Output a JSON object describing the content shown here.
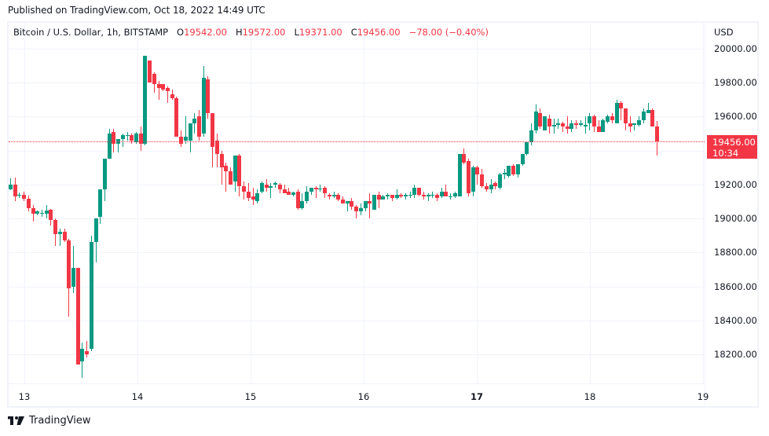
{
  "header": {
    "published": "Published on TradingView.com, Oct 18, 2022 14:49 UTC"
  },
  "legend": {
    "symbol": "Bitcoin / U.S. Dollar, 1h, BITSTAMP",
    "o_label": "O",
    "o_value": "19542.00",
    "h_label": "H",
    "h_value": "19572.00",
    "l_label": "L",
    "l_value": "19371.00",
    "c_label": "C",
    "c_value": "19456.00",
    "change": "−78.00 (−0.40%)"
  },
  "price_axis": {
    "currency": "USD",
    "ticks": [
      "20000.00",
      "19800.00",
      "19600.00",
      "19400.00",
      "19200.00",
      "19000.00",
      "18800.00",
      "18600.00",
      "18400.00",
      "18200.00"
    ],
    "last_price": "19456.00",
    "countdown": "10:34"
  },
  "time_axis": {
    "ticks": [
      {
        "label": "13",
        "bold": false
      },
      {
        "label": "14",
        "bold": false
      },
      {
        "label": "15",
        "bold": false
      },
      {
        "label": "16",
        "bold": false
      },
      {
        "label": "17",
        "bold": true
      },
      {
        "label": "18",
        "bold": false
      },
      {
        "label": "19",
        "bold": false
      }
    ]
  },
  "footer": {
    "brand": "TradingView"
  },
  "colors": {
    "up": "#089981",
    "down": "#f23645",
    "grid": "#f0f3fa",
    "text": "#131722"
  },
  "chart_data": {
    "type": "candlestick",
    "title": "Bitcoin / U.S. Dollar, 1h, BITSTAMP",
    "xlabel": "",
    "ylabel": "USD",
    "ylim": [
      18080,
      20100
    ],
    "x_ticks": [
      "13",
      "14",
      "15",
      "16",
      "17",
      "18",
      "19"
    ],
    "y_ticks": [
      18200,
      18400,
      18600,
      18800,
      19000,
      19200,
      19400,
      19600,
      19800,
      20000
    ],
    "grid": true,
    "last": {
      "open": 19542,
      "high": 19572,
      "low": 19371,
      "close": 19456,
      "change": -78,
      "change_pct": -0.4
    },
    "candles": [
      [
        19170,
        19235,
        19165,
        19200
      ],
      [
        19200,
        19240,
        19100,
        19130
      ],
      [
        19140,
        19155,
        19120,
        19140
      ],
      [
        19140,
        19160,
        19100,
        19115
      ],
      [
        19115,
        19135,
        19040,
        19060
      ],
      [
        19060,
        19080,
        18980,
        19030
      ],
      [
        19030,
        19045,
        19020,
        19040
      ],
      [
        19030,
        19050,
        19010,
        19035
      ],
      [
        19030,
        19080,
        19000,
        19045
      ],
      [
        19050,
        19055,
        18960,
        18990
      ],
      [
        18990,
        19000,
        18840,
        18910
      ],
      [
        18910,
        18940,
        18840,
        18920
      ],
      [
        18920,
        18940,
        18860,
        18870
      ],
      [
        18870,
        18880,
        18420,
        18590
      ],
      [
        18600,
        18840,
        18560,
        18710
      ],
      [
        18710,
        18710,
        18150,
        18140
      ],
      [
        18160,
        18270,
        18060,
        18230
      ],
      [
        18220,
        18280,
        18180,
        18200
      ],
      [
        18230,
        18900,
        18220,
        18860
      ],
      [
        18860,
        18960,
        18740,
        19000
      ],
      [
        19010,
        19100,
        18970,
        19170
      ],
      [
        19170,
        19280,
        19100,
        19350
      ],
      [
        19350,
        19530,
        19350,
        19500
      ],
      [
        19510,
        19530,
        19390,
        19440
      ],
      [
        19440,
        19460,
        19390,
        19470
      ],
      [
        19470,
        19500,
        19420,
        19490
      ],
      [
        19490,
        19510,
        19460,
        19490
      ],
      [
        19490,
        19500,
        19440,
        19460
      ],
      [
        19450,
        19510,
        19440,
        19500
      ],
      [
        19500,
        19540,
        19400,
        19440
      ],
      [
        19440,
        19860,
        19430,
        19960
      ],
      [
        19930,
        19890,
        19800,
        19800
      ],
      [
        19850,
        19860,
        19740,
        19790
      ],
      [
        19790,
        19810,
        19700,
        19770
      ],
      [
        19790,
        19790,
        19750,
        19760
      ],
      [
        19770,
        19780,
        19680,
        19750
      ],
      [
        19730,
        19760,
        19700,
        19710
      ],
      [
        19710,
        19720,
        19560,
        19480
      ],
      [
        19480,
        19520,
        19420,
        19440
      ],
      [
        19460,
        19600,
        19440,
        19480
      ],
      [
        19460,
        19480,
        19390,
        19560
      ],
      [
        19560,
        19620,
        19500,
        19590
      ],
      [
        19600,
        19640,
        19460,
        19480
      ],
      [
        19500,
        19900,
        19480,
        19830
      ],
      [
        19820,
        19840,
        19590,
        19620
      ],
      [
        19620,
        19620,
        19300,
        19420
      ],
      [
        19460,
        19500,
        19300,
        19380
      ],
      [
        19380,
        19400,
        19200,
        19300
      ],
      [
        19310,
        19330,
        19160,
        19280
      ],
      [
        19280,
        19300,
        19220,
        19200
      ],
      [
        19220,
        19370,
        19160,
        19370
      ],
      [
        19370,
        19380,
        19130,
        19190
      ],
      [
        19190,
        19220,
        19110,
        19160
      ],
      [
        19160,
        19210,
        19100,
        19120
      ],
      [
        19130,
        19180,
        19080,
        19110
      ],
      [
        19100,
        19170,
        19090,
        19150
      ],
      [
        19160,
        19220,
        19150,
        19210
      ],
      [
        19200,
        19230,
        19160,
        19180
      ],
      [
        19180,
        19210,
        19120,
        19190
      ],
      [
        19200,
        19220,
        19180,
        19210
      ],
      [
        19200,
        19210,
        19150,
        19170
      ],
      [
        19170,
        19200,
        19150,
        19150
      ],
      [
        19160,
        19180,
        19140,
        19140
      ],
      [
        19140,
        19160,
        19130,
        19155
      ],
      [
        19160,
        19170,
        19050,
        19060
      ],
      [
        19060,
        19150,
        19050,
        19100
      ],
      [
        19100,
        19190,
        19090,
        19160
      ],
      [
        19160,
        19170,
        19140,
        19180
      ],
      [
        19180,
        19190,
        19120,
        19170
      ],
      [
        19170,
        19200,
        19160,
        19175
      ],
      [
        19180,
        19190,
        19120,
        19150
      ],
      [
        19140,
        19150,
        19110,
        19130
      ],
      [
        19130,
        19160,
        19120,
        19140
      ],
      [
        19140,
        19150,
        19100,
        19110
      ],
      [
        19110,
        19130,
        19090,
        19090
      ],
      [
        19090,
        19100,
        19040,
        19100
      ],
      [
        19100,
        19120,
        19050,
        19070
      ],
      [
        19070,
        19080,
        19000,
        19040
      ],
      [
        19040,
        19090,
        19020,
        19060
      ],
      [
        19060,
        19080,
        19040,
        19100
      ],
      [
        19100,
        19150,
        19000,
        19090
      ],
      [
        19050,
        19140,
        19070,
        19140
      ],
      [
        19140,
        19160,
        19060,
        19110
      ],
      [
        19110,
        19140,
        19120,
        19130
      ],
      [
        19130,
        19150,
        19110,
        19140
      ],
      [
        19140,
        19140,
        19100,
        19120
      ],
      [
        19120,
        19170,
        19110,
        19140
      ],
      [
        19140,
        19150,
        19120,
        19130
      ],
      [
        19130,
        19150,
        19110,
        19140
      ],
      [
        19140,
        19160,
        19120,
        19140
      ],
      [
        19140,
        19200,
        19120,
        19180
      ],
      [
        19180,
        19180,
        19130,
        19140
      ],
      [
        19140,
        19160,
        19110,
        19130
      ],
      [
        19130,
        19150,
        19100,
        19140
      ],
      [
        19140,
        19160,
        19120,
        19140
      ],
      [
        19140,
        19150,
        19100,
        19120
      ],
      [
        19130,
        19180,
        19120,
        19160
      ],
      [
        19160,
        19200,
        19140,
        19130
      ],
      [
        19130,
        19150,
        19110,
        19130
      ],
      [
        19130,
        19160,
        19120,
        19150
      ],
      [
        19130,
        19380,
        19130,
        19380
      ],
      [
        19380,
        19410,
        19320,
        19330
      ],
      [
        19340,
        19350,
        19130,
        19150
      ],
      [
        19160,
        19310,
        19130,
        19300
      ],
      [
        19300,
        19310,
        19200,
        19260
      ],
      [
        19260,
        19290,
        19180,
        19190
      ],
      [
        19190,
        19210,
        19160,
        19170
      ],
      [
        19170,
        19230,
        19150,
        19200
      ],
      [
        19210,
        19220,
        19170,
        19190
      ],
      [
        19180,
        19270,
        19170,
        19260
      ],
      [
        19260,
        19290,
        19230,
        19270
      ],
      [
        19250,
        19300,
        19240,
        19310
      ],
      [
        19310,
        19320,
        19250,
        19260
      ],
      [
        19260,
        19300,
        19240,
        19320
      ],
      [
        19320,
        19380,
        19310,
        19380
      ],
      [
        19380,
        19450,
        19370,
        19450
      ],
      [
        19450,
        19560,
        19430,
        19520
      ],
      [
        19520,
        19670,
        19500,
        19630
      ],
      [
        19620,
        19650,
        19530,
        19540
      ],
      [
        19520,
        19600,
        19520,
        19600
      ],
      [
        19590,
        19610,
        19500,
        19540
      ],
      [
        19540,
        19590,
        19500,
        19550
      ],
      [
        19550,
        19590,
        19530,
        19560
      ],
      [
        19560,
        19570,
        19510,
        19540
      ],
      [
        19540,
        19600,
        19500,
        19530
      ],
      [
        19530,
        19580,
        19510,
        19560
      ],
      [
        19560,
        19580,
        19530,
        19550
      ],
      [
        19550,
        19580,
        19540,
        19560
      ],
      [
        19540,
        19600,
        19500,
        19550
      ],
      [
        19560,
        19620,
        19520,
        19600
      ],
      [
        19600,
        19610,
        19510,
        19540
      ],
      [
        19540,
        19580,
        19510,
        19510
      ],
      [
        19510,
        19590,
        19510,
        19580
      ],
      [
        19570,
        19610,
        19560,
        19600
      ],
      [
        19600,
        19620,
        19560,
        19580
      ],
      [
        19560,
        19700,
        19560,
        19680
      ],
      [
        19680,
        19690,
        19580,
        19650
      ],
      [
        19650,
        19650,
        19520,
        19560
      ],
      [
        19560,
        19600,
        19510,
        19540
      ],
      [
        19550,
        19560,
        19520,
        19560
      ],
      [
        19550,
        19600,
        19540,
        19580
      ],
      [
        19580,
        19650,
        19560,
        19630
      ],
      [
        19620,
        19680,
        19620,
        19640
      ],
      [
        19640,
        19650,
        19542,
        19542
      ],
      [
        19542,
        19572,
        19371,
        19456
      ]
    ]
  }
}
